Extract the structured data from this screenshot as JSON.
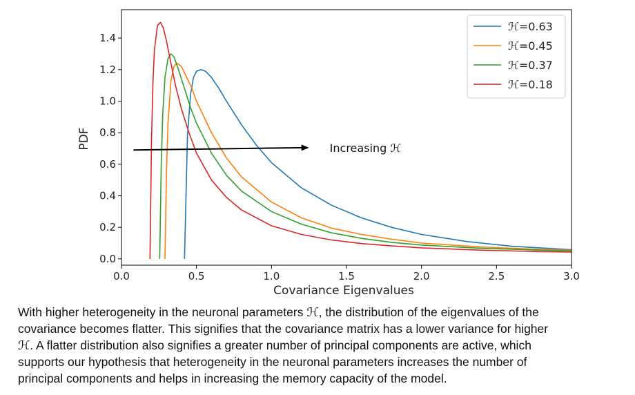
{
  "chart_data": {
    "type": "line",
    "title": "",
    "xlabel": "Covariance Eigenvalues",
    "ylabel": "PDF",
    "xlim": [
      0.0,
      3.0
    ],
    "ylim": [
      -0.04,
      1.58
    ],
    "x_ticks": [
      "0.0",
      "0.5",
      "1.0",
      "1.5",
      "2.0",
      "2.5",
      "3.0"
    ],
    "y_ticks": [
      "0.0",
      "0.2",
      "0.4",
      "0.6",
      "0.8",
      "1.0",
      "1.2",
      "1.4"
    ],
    "grid": false,
    "legend_position": "top-right",
    "series": [
      {
        "name": "ℋ=0.63",
        "color": "#1f77b4",
        "x": [
          0.42,
          0.44,
          0.46,
          0.48,
          0.5,
          0.53,
          0.56,
          0.6,
          0.65,
          0.7,
          0.8,
          0.9,
          1.0,
          1.2,
          1.4,
          1.6,
          1.8,
          2.0,
          2.3,
          2.6,
          3.0
        ],
        "y": [
          0.0,
          0.78,
          1.04,
          1.15,
          1.19,
          1.2,
          1.19,
          1.15,
          1.08,
          1.0,
          0.85,
          0.72,
          0.61,
          0.45,
          0.34,
          0.26,
          0.2,
          0.155,
          0.11,
          0.08,
          0.058
        ]
      },
      {
        "name": "ℋ=0.45",
        "color": "#ff7f0e",
        "x": [
          0.29,
          0.3,
          0.31,
          0.33,
          0.35,
          0.37,
          0.4,
          0.43,
          0.47,
          0.5,
          0.6,
          0.7,
          0.8,
          1.0,
          1.2,
          1.4,
          1.6,
          1.8,
          2.0,
          2.4,
          2.8,
          3.0
        ],
        "y": [
          0.0,
          0.55,
          0.86,
          1.13,
          1.22,
          1.24,
          1.22,
          1.16,
          1.08,
          1.0,
          0.8,
          0.64,
          0.52,
          0.36,
          0.26,
          0.195,
          0.155,
          0.125,
          0.1,
          0.075,
          0.06,
          0.055
        ]
      },
      {
        "name": "ℋ=0.37",
        "color": "#2ca02c",
        "x": [
          0.255,
          0.265,
          0.275,
          0.29,
          0.31,
          0.33,
          0.35,
          0.38,
          0.42,
          0.46,
          0.5,
          0.6,
          0.7,
          0.8,
          1.0,
          1.2,
          1.4,
          1.6,
          1.8,
          2.0,
          2.4,
          2.8,
          3.0
        ],
        "y": [
          0.0,
          0.6,
          0.92,
          1.15,
          1.27,
          1.3,
          1.28,
          1.2,
          1.08,
          0.96,
          0.86,
          0.67,
          0.53,
          0.43,
          0.3,
          0.22,
          0.165,
          0.13,
          0.105,
          0.088,
          0.067,
          0.055,
          0.05
        ]
      },
      {
        "name": "ℋ=0.18",
        "color": "#d62728",
        "x": [
          0.19,
          0.2,
          0.21,
          0.22,
          0.24,
          0.26,
          0.28,
          0.3,
          0.33,
          0.36,
          0.4,
          0.45,
          0.5,
          0.6,
          0.7,
          0.8,
          1.0,
          1.2,
          1.4,
          1.6,
          1.8,
          2.0,
          2.4,
          2.8,
          3.0
        ],
        "y": [
          0.0,
          0.75,
          1.12,
          1.33,
          1.48,
          1.5,
          1.46,
          1.38,
          1.24,
          1.1,
          0.95,
          0.8,
          0.67,
          0.5,
          0.39,
          0.31,
          0.21,
          0.155,
          0.12,
          0.097,
          0.082,
          0.07,
          0.055,
          0.046,
          0.043
        ]
      }
    ],
    "annotation": {
      "text_prefix": "Increasing ",
      "symbol": "ℋ",
      "arrow_from": [
        0.08,
        0.69
      ],
      "arrow_to": [
        1.25,
        0.705
      ]
    }
  },
  "caption": {
    "lines": [
      "With higher heterogeneity in the neuronal parameters ℋ, the distribution of the eigenvalues of the",
      "covariance becomes flatter. This signifies that the covariance matrix has a lower variance for higher",
      "ℋ. A flatter distribution also signifies a greater number of principal components are active, which",
      "supports our hypothesis that heterogeneity in the neuronal parameters increases the number of",
      "principal components and helps in increasing the memory capacity of the model."
    ]
  }
}
